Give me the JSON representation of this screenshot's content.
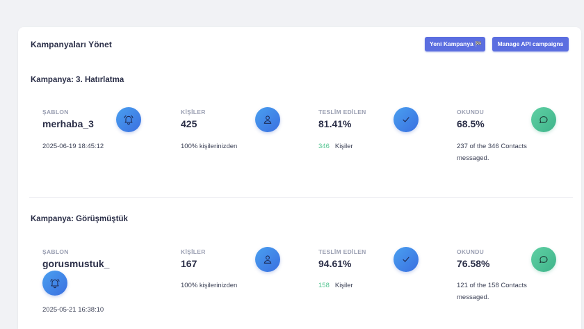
{
  "header": {
    "title": "Kampanyaları Yönet",
    "new_campaign_label": "Yeni Kampanya",
    "new_campaign_flag": "🏁",
    "api_campaigns_label": "Manage API campaigns"
  },
  "campaigns": [
    {
      "title": "Kampanya: 3. Hatırlatma",
      "template_label": "ŞABLON",
      "template_name": "merhaba_3",
      "date": "2025-06-19 18:45:12",
      "contacts_label": "KİŞİLER",
      "contacts_value": "425",
      "contacts_sub": "100% kişilerinizden",
      "delivered_label": "TESLİM EDİLEN",
      "delivered_value": "81.41%",
      "delivered_count": "346",
      "delivered_sub": "Kişiler",
      "read_label": "OKUNDU",
      "read_value": "68.5%",
      "read_sub_line1": "237 of the 346 Contacts",
      "read_sub_line2": "messaged."
    },
    {
      "title": "Kampanya: Görüşmüştük",
      "template_label": "ŞABLON",
      "template_name": "gorusmustuk_",
      "date": "2025-05-21 16:38:10",
      "contacts_label": "KİŞİLER",
      "contacts_value": "167",
      "contacts_sub": "100% kişilerinizden",
      "delivered_label": "TESLİM EDİLEN",
      "delivered_value": "94.61%",
      "delivered_count": "158",
      "delivered_sub": "Kişiler",
      "read_label": "OKUNDU",
      "read_value": "76.58%",
      "read_sub_line1": "121 of the 158 Contacts",
      "read_sub_line2": "messaged."
    }
  ],
  "icons": {
    "template": "bell-icon",
    "contacts": "user-icon",
    "delivered": "check-icon",
    "read": "chat-bubble-icon"
  },
  "colors": {
    "button": "#5b6ee0",
    "icon_blue": "#3a6fe0",
    "icon_teal": "#3fb48a",
    "delivered_count": "#4cc28c"
  }
}
